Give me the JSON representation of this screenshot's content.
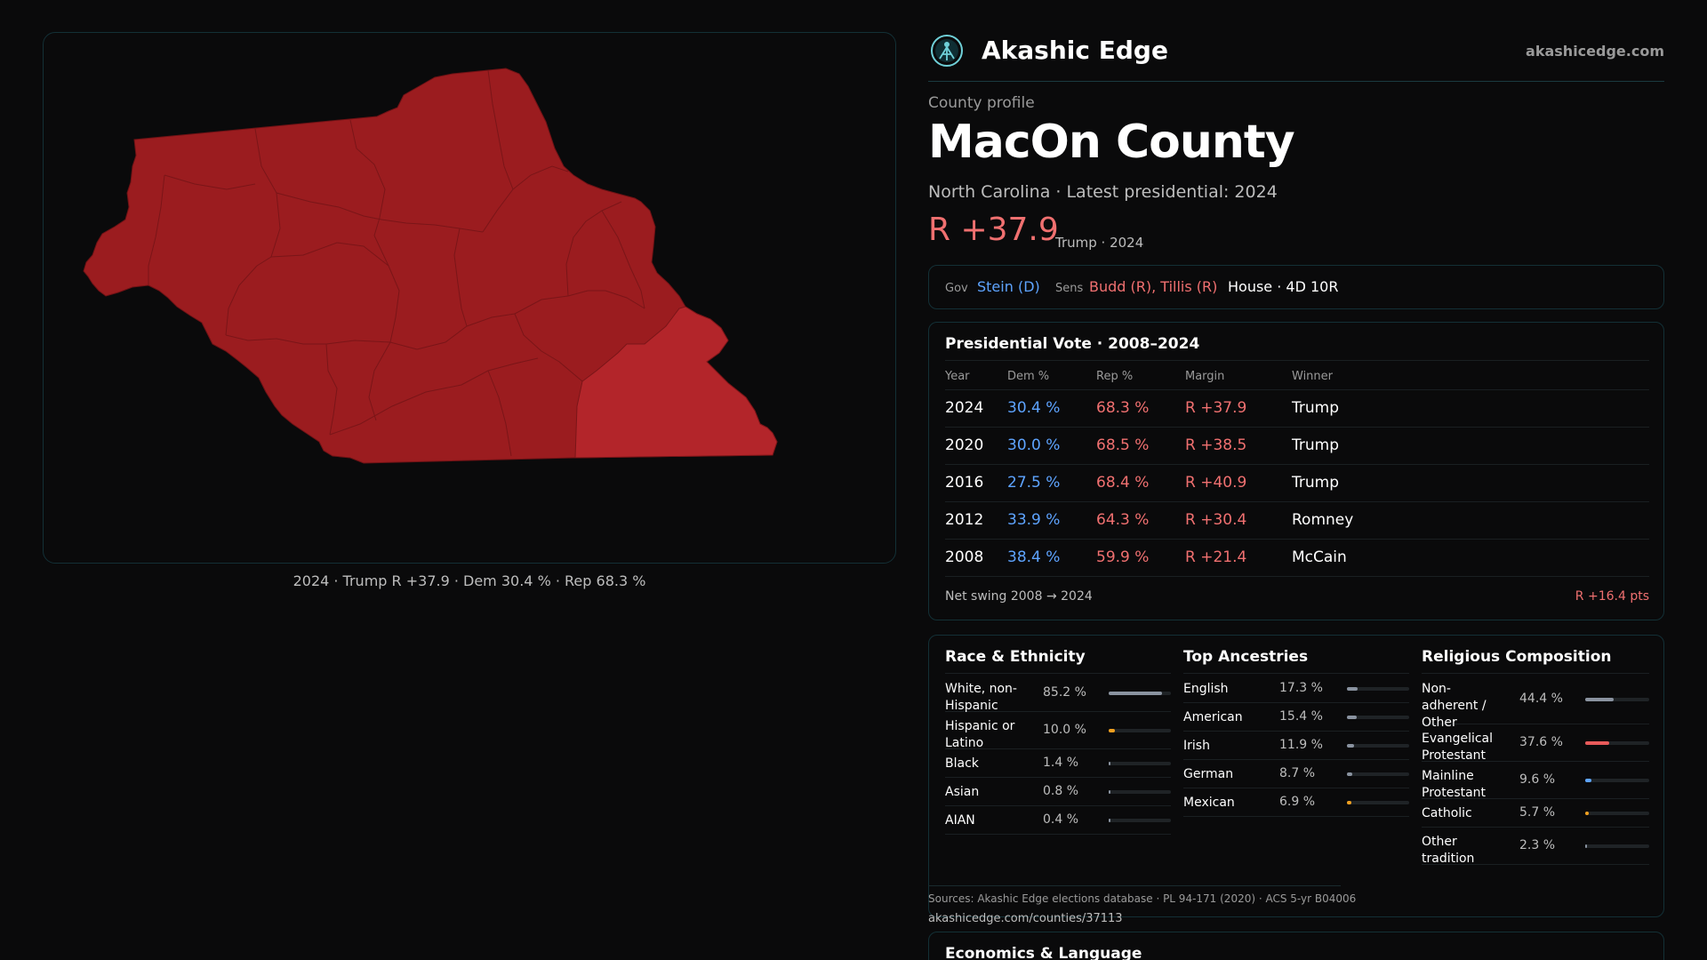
{
  "map": {
    "colors": {
      "county_fill": "#9b1c1f",
      "county_highlight": "#b3252a",
      "precinct_line": "#7a1518"
    },
    "caption": "2024 · Trump R +37.9 · Dem 30.4 % · Rep 68.3 %"
  },
  "brand": {
    "name": "Akashic Edge",
    "url": "akashicedge.com"
  },
  "profile": {
    "eyebrow": "County profile",
    "county": "MacOn County",
    "subtitle": "North Carolina · Latest presidential: 2024",
    "margin": "R +37.9",
    "margin_note": "Trump · 2024"
  },
  "officials": {
    "gov_label": "Gov",
    "gov": "Stein (D)",
    "sens_label": "Sens",
    "sens": "Budd (R), Tillis (R)",
    "house": "House · 4D 10R"
  },
  "presidential": {
    "title": "Presidential Vote · 2008–2024",
    "headers": [
      "Year",
      "Dem %",
      "Rep %",
      "Margin",
      "Winner"
    ],
    "rows": [
      {
        "year": "2024",
        "dem": "30.4 %",
        "rep": "68.3 %",
        "margin": "R +37.9",
        "winner": "Trump"
      },
      {
        "year": "2020",
        "dem": "30.0 %",
        "rep": "68.5 %",
        "margin": "R +38.5",
        "winner": "Trump"
      },
      {
        "year": "2016",
        "dem": "27.5 %",
        "rep": "68.4 %",
        "margin": "R +40.9",
        "winner": "Trump"
      },
      {
        "year": "2012",
        "dem": "33.9 %",
        "rep": "64.3 %",
        "margin": "R +30.4",
        "winner": "Romney"
      },
      {
        "year": "2008",
        "dem": "38.4 %",
        "rep": "59.9 %",
        "margin": "R +21.4",
        "winner": "McCain"
      }
    ],
    "swing_label": "Net swing 2008 → 2024",
    "swing_value": "R +16.4 pts"
  },
  "race": {
    "title": "Race & Ethnicity",
    "items": [
      {
        "name": "White, non-Hispanic",
        "value": "85.2 %",
        "fraction": 0.852,
        "color": "#8a93a0"
      },
      {
        "name": "Hispanic or Latino",
        "value": "10.0 %",
        "fraction": 0.1,
        "color": "#f0a020"
      },
      {
        "name": "Black",
        "value": "1.4 %",
        "fraction": 0.014,
        "color": "#8a93a0"
      },
      {
        "name": "Asian",
        "value": "0.8 %",
        "fraction": 0.008,
        "color": "#8a93a0"
      },
      {
        "name": "AIAN",
        "value": "0.4 %",
        "fraction": 0.004,
        "color": "#8a93a0"
      }
    ]
  },
  "ancestry": {
    "title": "Top Ancestries",
    "items": [
      {
        "name": "English",
        "value": "17.3 %",
        "fraction": 0.173,
        "color": "#8a93a0"
      },
      {
        "name": "American",
        "value": "15.4 %",
        "fraction": 0.154,
        "color": "#8a93a0"
      },
      {
        "name": "Irish",
        "value": "11.9 %",
        "fraction": 0.119,
        "color": "#8a93a0"
      },
      {
        "name": "German",
        "value": "8.7 %",
        "fraction": 0.087,
        "color": "#8a93a0"
      },
      {
        "name": "Mexican",
        "value": "6.9 %",
        "fraction": 0.069,
        "color": "#f0a020"
      }
    ]
  },
  "religion": {
    "title": "Religious Composition",
    "items": [
      {
        "name": "Non-adherent / Other",
        "value": "44.4 %",
        "fraction": 0.444,
        "color": "#8a93a0"
      },
      {
        "name": "Evangelical Protestant",
        "value": "37.6 %",
        "fraction": 0.376,
        "color": "#e85a5a"
      },
      {
        "name": "Mainline Protestant",
        "value": "9.6 %",
        "fraction": 0.096,
        "color": "#5ea4ff"
      },
      {
        "name": "Catholic",
        "value": "5.7 %",
        "fraction": 0.057,
        "color": "#f0a020"
      },
      {
        "name": "Other tradition",
        "value": "2.3 %",
        "fraction": 0.023,
        "color": "#8a93a0"
      }
    ]
  },
  "sources": {
    "text": "Sources: Akashic Edge elections database · PL 94-171 (2020) · ACS 5-yr B04006",
    "url": "akashicedge.com/counties/37113"
  },
  "economics": {
    "title": "Economics & Language"
  }
}
